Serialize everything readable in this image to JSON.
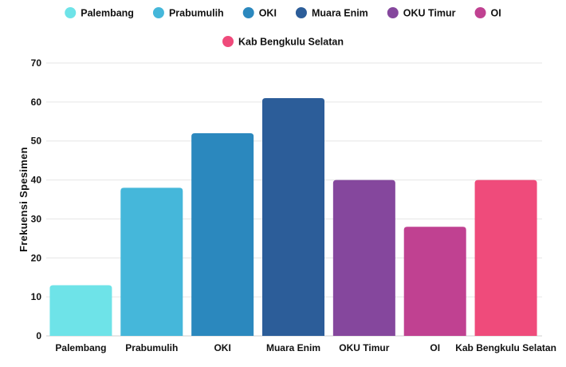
{
  "chart_data": {
    "type": "bar",
    "categories": [
      "Palembang",
      "Prabumulih",
      "OKI",
      "Muara Enim",
      "OKU Timur",
      "OI",
      "Kab Bengkulu Selatan"
    ],
    "values": [
      13,
      38,
      52,
      61,
      40,
      28,
      40
    ],
    "colors": [
      "#6ee3e8",
      "#45b7da",
      "#2b88be",
      "#2c5d99",
      "#85479d",
      "#c04191",
      "#ef4b7b"
    ],
    "legend": [
      "Palembang",
      "Prabumulih",
      "OKI",
      "Muara Enim",
      "OKU Timur",
      "OI",
      "Kab Bengkulu Selatan"
    ],
    "legend_position": "top",
    "title": "",
    "xlabel": "",
    "ylabel": "Frekuensi Spesimen",
    "ylim": [
      0,
      70
    ],
    "yticks": [
      0,
      10,
      20,
      30,
      40,
      50,
      60,
      70
    ],
    "grid": true
  }
}
